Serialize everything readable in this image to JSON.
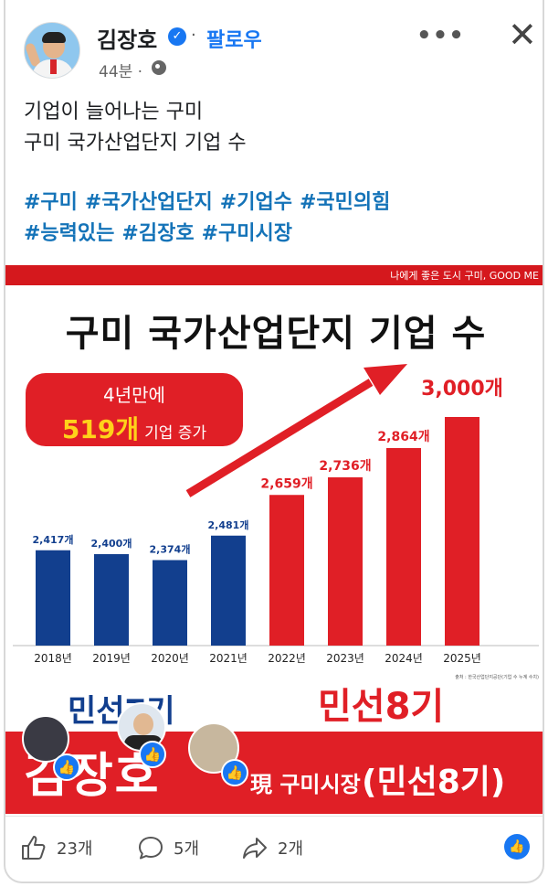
{
  "header": {
    "name": "김장호",
    "follow_separator": "·",
    "follow_label": "팔로우",
    "time": "44분 ·",
    "more": "•••",
    "close": "✕"
  },
  "post": {
    "line1": "기업이 늘어나는 구미",
    "line2": "구미 국가산업단지 기업 수",
    "hashtags": [
      "#구미",
      "#국가산업단지",
      "#기업수",
      "#국민의힘",
      "#능력있는",
      "#김장호",
      "#구미시장"
    ]
  },
  "image": {
    "slogan": "나에게 좋은 도시 구미, GOOD ME",
    "title": "구미 국가산업단지 기업 수",
    "bubble_line1": "4년만에",
    "bubble_big": "519개",
    "bubble_rest": "기업 증가",
    "era7": "민선7기",
    "era8": "민선8기",
    "source_note": "출처 : 한국산업단지공단(기업 수 누계 수치)",
    "band_name": "김장호",
    "band_sub": "現 구미시장",
    "band_min8": "(민선8기)"
  },
  "chart_data": {
    "type": "bar",
    "categories": [
      "2018년",
      "2019년",
      "2020년",
      "2021년",
      "2022년",
      "2023년",
      "2024년",
      "2025년"
    ],
    "values": [
      2417,
      2400,
      2374,
      2481,
      2659,
      2736,
      2864,
      3000
    ],
    "labels": [
      "2,417개",
      "2,400개",
      "2,374개",
      "2,481개",
      "2,659개",
      "2,736개",
      "2,864개",
      "3,000개"
    ],
    "colors": [
      "#123f8e",
      "#123f8e",
      "#123f8e",
      "#123f8e",
      "#e01f26",
      "#e01f26",
      "#e01f26",
      "#e01f26"
    ],
    "title": "구미 국가산업단지 기업 수"
  },
  "footer": {
    "likes": "23개",
    "comments": "5개",
    "shares": "2개"
  },
  "colors": {
    "accent": "#1877f2",
    "hashtag": "#1473b8",
    "red": "#e01f26",
    "navy": "#123f8e"
  }
}
